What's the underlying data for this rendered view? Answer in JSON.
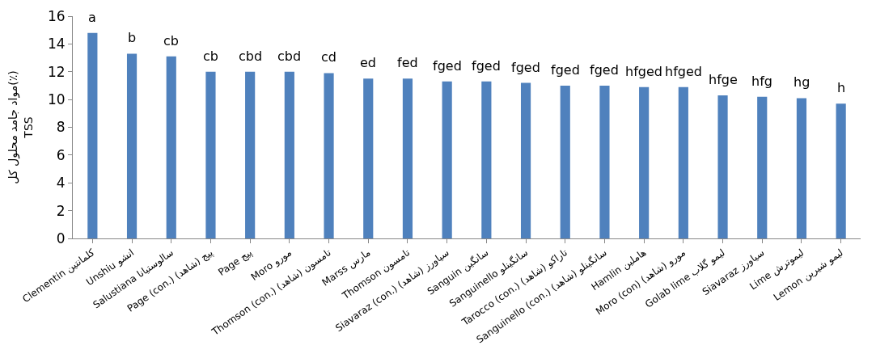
{
  "chart_data": {
    "type": "bar",
    "ylabel": "مواد جامد محلول کل(٪)\nTSS",
    "categories": [
      "Clementin کلمانتین",
      "Unshiu انشو",
      "Salustiana سالوستیانا",
      "Page (con.) پیج (شاهد)",
      "Page پیج",
      "Moro مورو",
      "Thomson (con.) تامسون (شاهد)",
      "Marss مارس",
      "Thomson تامسون",
      "Siavaraz (con.) سیاورز (شاهد)",
      "Sanguin سانگین",
      "Sanguinello سانگینلو",
      "Tarocco (con.) تاراکو (شاهد)",
      "Sanguinello (con.) سانگینلو (شاهد)",
      "Hamlin هاملین",
      "Moro (con) مورو (شاهد)",
      "Golab lime لیمو گلاب",
      "Siavaraz سیاورز",
      "Lime لیموترش",
      "Lemon لیمو شیرین"
    ],
    "values": [
      14.8,
      13.3,
      13.1,
      12.0,
      12.0,
      12.0,
      11.9,
      11.5,
      11.5,
      11.3,
      11.3,
      11.2,
      11.0,
      11.0,
      10.9,
      10.9,
      10.3,
      10.2,
      10.1,
      9.7
    ],
    "color": "#4f81bd",
    "ylim": [
      0,
      16
    ],
    "yticks": [
      0,
      2,
      4,
      6,
      8,
      10,
      12,
      14,
      16
    ],
    "annotations": [
      {
        "text": "a",
        "x": "Clementin کلمانتین",
        "y": 14.8
      },
      {
        "text": "b",
        "x": "Unshiu انشو",
        "y": 13.3
      },
      {
        "text": "cb",
        "x": "Salustiana سالوستیانا",
        "y": 13.1
      },
      {
        "text": "cb",
        "x": "Page (con.) پیج (شاهد)",
        "y": 12.0
      },
      {
        "text": "cbd",
        "x": "Page پیج",
        "y": 12.0
      },
      {
        "text": "cbd",
        "x": "Moro مورو",
        "y": 12.0
      },
      {
        "text": "cd",
        "x": "Thomson (con.) تامسون (شاهد)",
        "y": 11.9
      },
      {
        "text": "ed",
        "x": "Marss مارس",
        "y": 11.5
      },
      {
        "text": "fed",
        "x": "Thomson تامسون",
        "y": 11.5
      },
      {
        "text": "fged",
        "x": "Siavaraz (con.) سیاورز (شاهد)",
        "y": 11.3
      },
      {
        "text": "fged",
        "x": "Sanguin سانگین",
        "y": 11.3
      },
      {
        "text": "fged",
        "x": "Sanguinello سانگینلو",
        "y": 11.2
      },
      {
        "text": "fged",
        "x": "Tarocco (con.) تاراکو (شاهد)",
        "y": 11.0
      },
      {
        "text": "fged",
        "x": "Sanguinello (con.) سانگینلو (شاهد)",
        "y": 11.0
      },
      {
        "text": "hfged",
        "x": "Hamlin هاملین",
        "y": 10.9
      },
      {
        "text": "hfged",
        "x": "Moro (con) مورو (شاهد)",
        "y": 10.9
      },
      {
        "text": "hfge",
        "x": "Golab lime لیمو گلاب",
        "y": 10.3
      },
      {
        "text": "hfg",
        "x": "Siavaraz سیاورز",
        "y": 10.2
      },
      {
        "text": "hg",
        "x": "Lime لیموترش",
        "y": 10.1
      },
      {
        "text": "h",
        "x": "Lemon لیمو شیرین",
        "y": 9.7
      }
    ]
  }
}
